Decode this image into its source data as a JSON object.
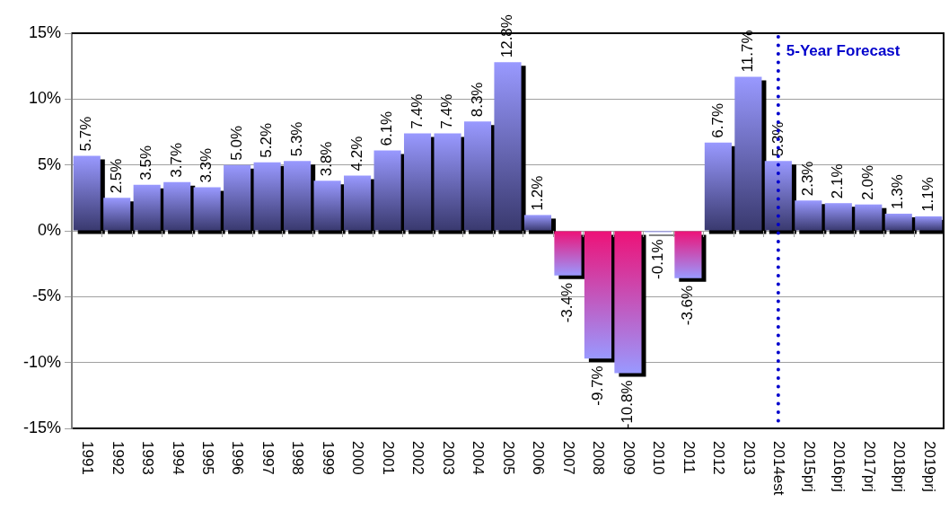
{
  "chart_data": {
    "type": "bar",
    "categories": [
      "1991",
      "1992",
      "1993",
      "1994",
      "1995",
      "1996",
      "1997",
      "1998",
      "1999",
      "2000",
      "2001",
      "2002",
      "2003",
      "2004",
      "2005",
      "2006",
      "2007",
      "2008",
      "2009",
      "2010",
      "2011",
      "2012",
      "2013",
      "2014est",
      "2015prj",
      "2016prj",
      "2017prj",
      "2018prj",
      "2019prj"
    ],
    "values": [
      5.7,
      2.5,
      3.5,
      3.7,
      3.3,
      5.0,
      5.2,
      5.3,
      3.8,
      4.2,
      6.1,
      7.4,
      7.4,
      8.3,
      12.8,
      1.2,
      -3.4,
      -9.7,
      -10.8,
      -0.1,
      -3.6,
      6.7,
      11.7,
      5.3,
      2.3,
      2.1,
      2.0,
      1.3,
      1.1
    ],
    "value_labels": [
      "5.7%",
      "2.5%",
      "3.5%",
      "3.7%",
      "3.3%",
      "5.0%",
      "5.2%",
      "5.3%",
      "3.8%",
      "4.2%",
      "6.1%",
      "7.4%",
      "7.4%",
      "8.3%",
      "12.8%",
      "1.2%",
      "-3.4%",
      "-9.7%",
      "-10.8%",
      "-0.1%",
      "-3.6%",
      "6.7%",
      "11.7%",
      "5.3%",
      "2.3%",
      "2.1%",
      "2.0%",
      "1.3%",
      "1.1%"
    ],
    "colors": [
      "#9999ff",
      "#9999ff",
      "#9999ff",
      "#9999ff",
      "#9999ff",
      "#9999ff",
      "#9999ff",
      "#9999ff",
      "#9999ff",
      "#9999ff",
      "#9999ff",
      "#9999ff",
      "#9999ff",
      "#9999ff",
      "#9999ff",
      "#9999ff",
      "#ee1177",
      "#ee1177",
      "#ee1177",
      "#9999ff",
      "#ee1177",
      "#9999ff",
      "#9999ff",
      "#9999ff",
      "#9999ff",
      "#9999ff",
      "#9999ff",
      "#9999ff",
      "#9999ff"
    ],
    "ylim": [
      -15,
      15
    ],
    "yticks": [
      {
        "value": -15,
        "label": "-15%"
      },
      {
        "value": -10,
        "label": "-10%"
      },
      {
        "value": -5,
        "label": "-5%"
      },
      {
        "value": 0,
        "label": "0%"
      },
      {
        "value": 5,
        "label": "5%"
      },
      {
        "value": 10,
        "label": "10%"
      },
      {
        "value": 15,
        "label": "15%"
      }
    ],
    "grid": "y",
    "ref_lines": [
      {
        "axis": "x",
        "value": "2014est",
        "label": "5-Year Forecast",
        "color": "#0000cc",
        "line_style": "dotted"
      }
    ]
  }
}
